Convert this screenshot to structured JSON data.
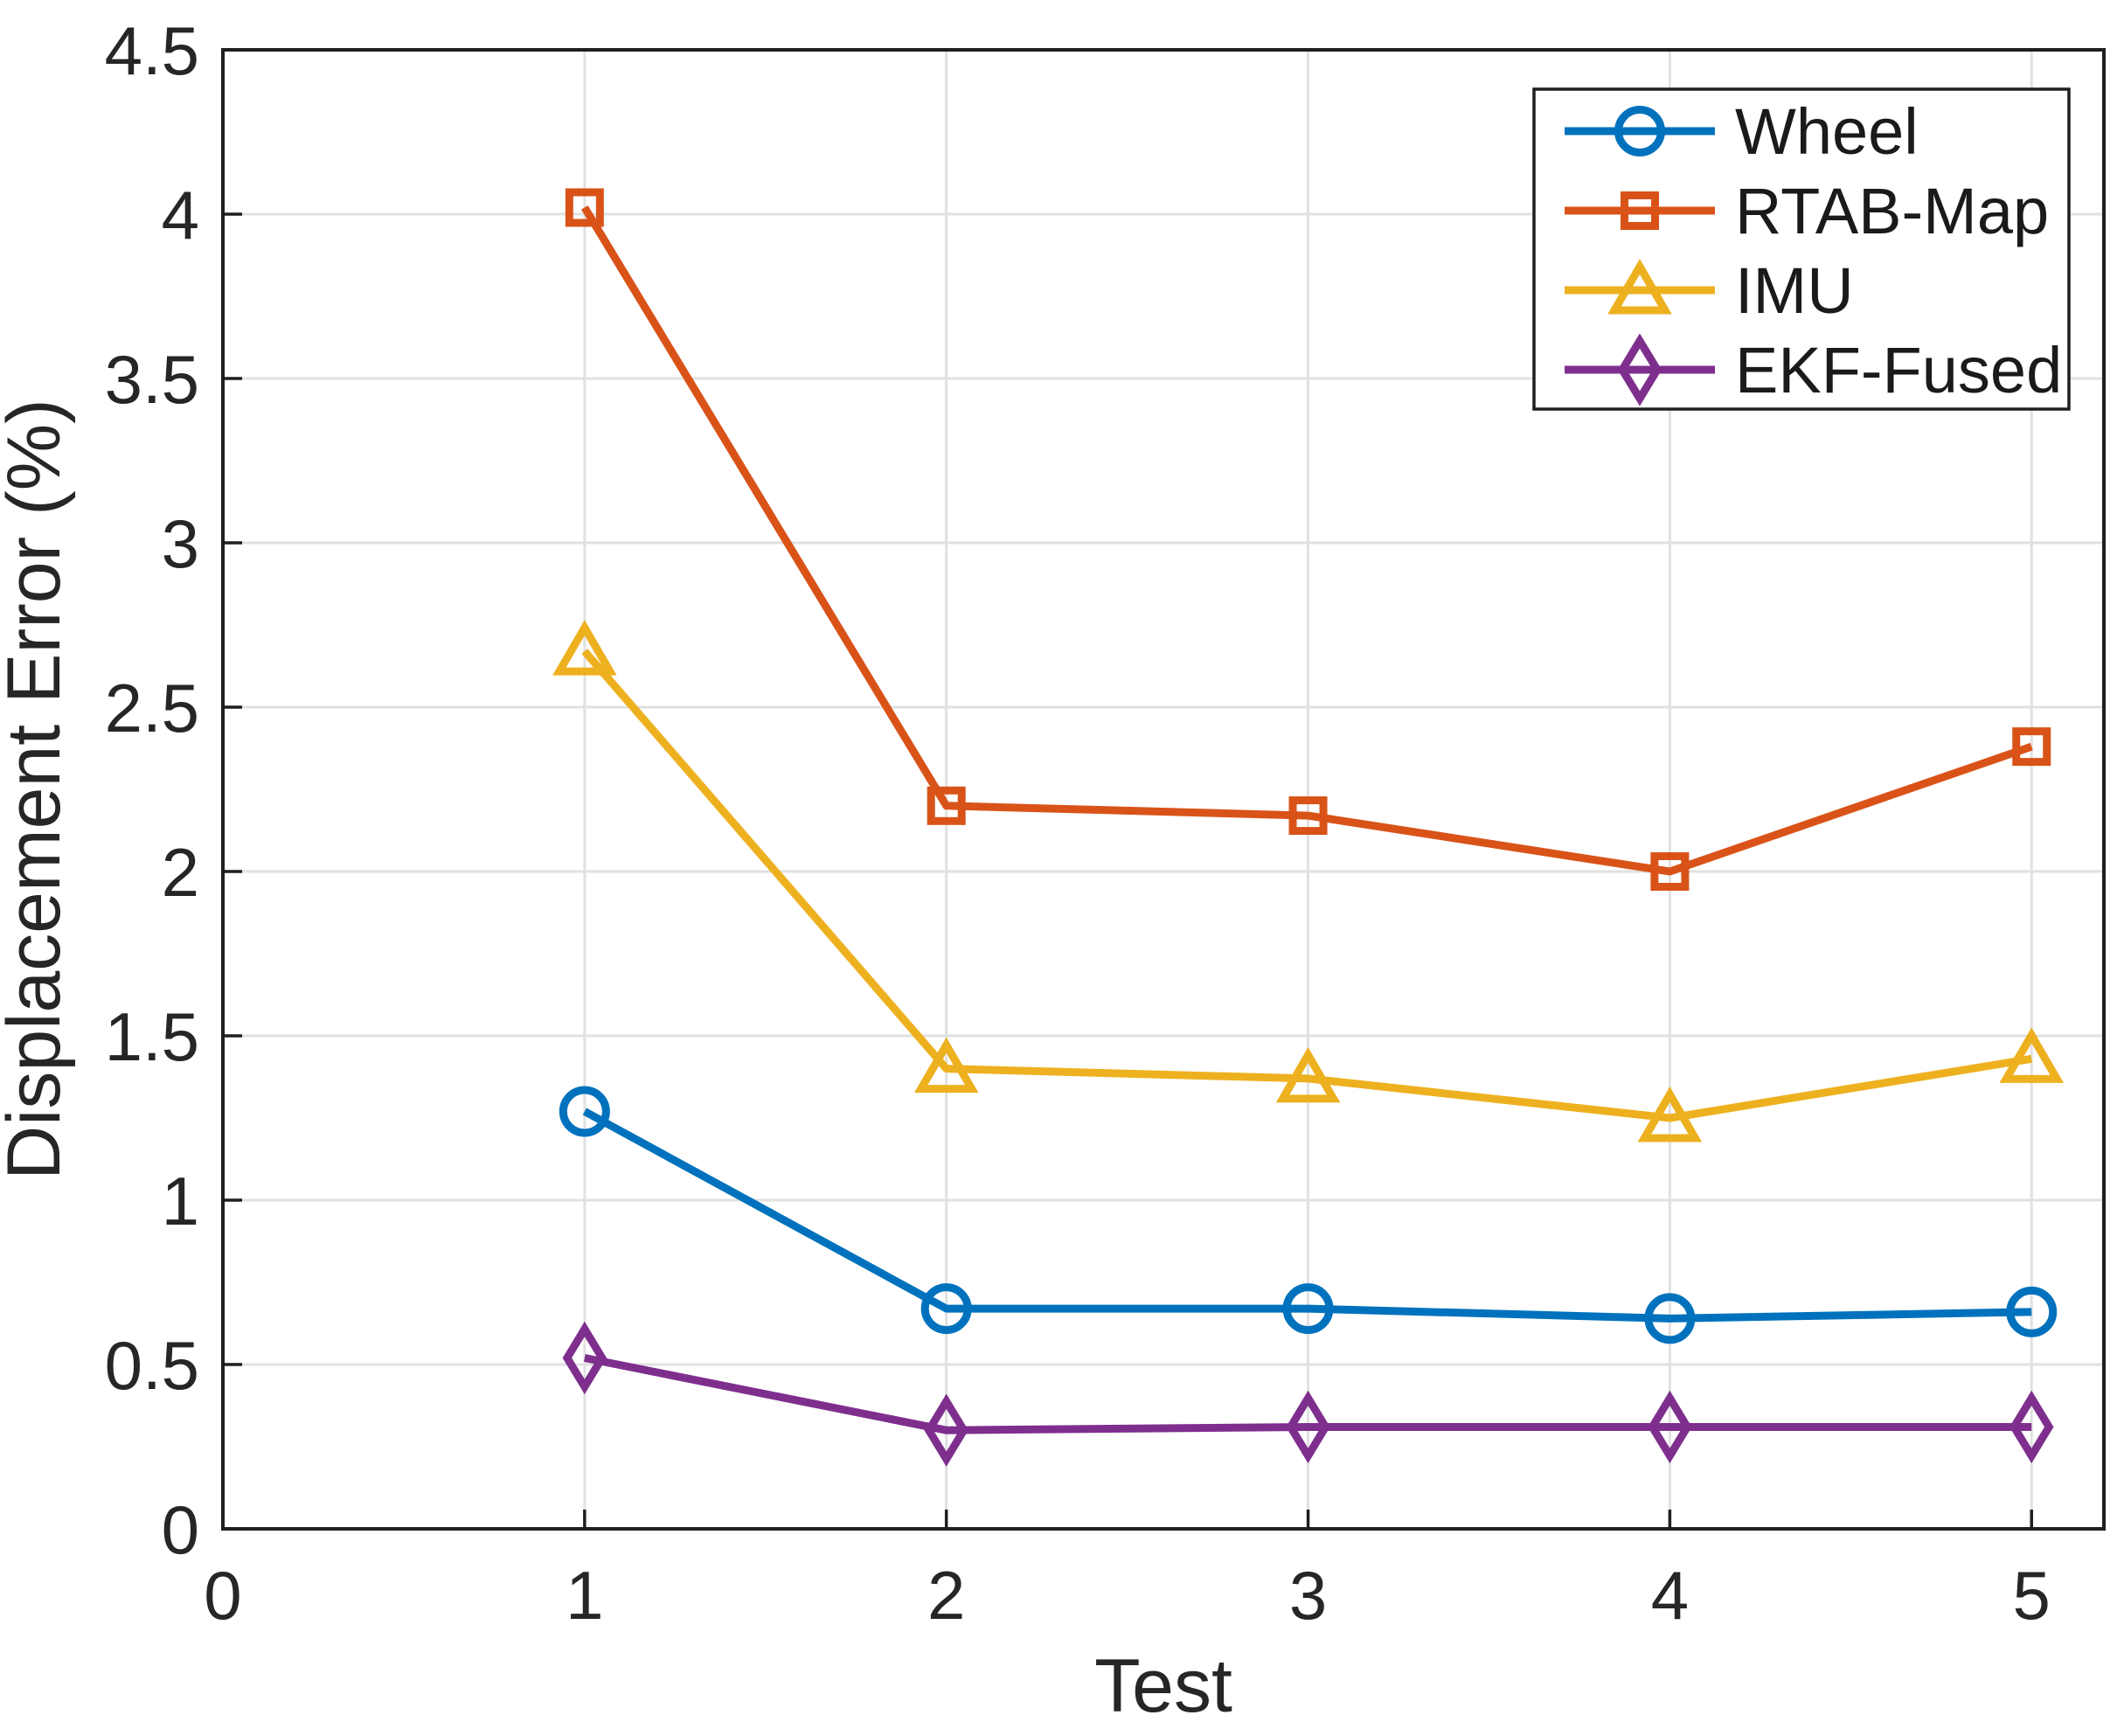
{
  "chart_data": {
    "type": "line",
    "title": "",
    "xlabel": "Test",
    "ylabel": "Displacement Error (%)",
    "x": [
      1,
      2,
      3,
      4,
      5
    ],
    "xlim": [
      0,
      5.2
    ],
    "ylim": [
      0,
      4.5
    ],
    "xticks": [
      0,
      1,
      2,
      3,
      4,
      5
    ],
    "yticks": [
      0,
      0.5,
      1,
      1.5,
      2,
      2.5,
      3,
      3.5,
      4,
      4.5
    ],
    "grid": true,
    "legend_position": "top-right",
    "series": [
      {
        "name": "Wheel",
        "color": "#0072BD",
        "marker": "circle",
        "values": [
          1.27,
          0.67,
          0.67,
          0.64,
          0.66
        ]
      },
      {
        "name": "RTAB-Map",
        "color": "#D95319",
        "marker": "square",
        "values": [
          4.02,
          2.2,
          2.17,
          2.0,
          2.38
        ]
      },
      {
        "name": "IMU",
        "color": "#EDB120",
        "marker": "triangle",
        "values": [
          2.67,
          1.4,
          1.37,
          1.25,
          1.43
        ]
      },
      {
        "name": "EKF-Fused",
        "color": "#7E2F8E",
        "marker": "diamond",
        "values": [
          0.52,
          0.3,
          0.31,
          0.31,
          0.31
        ]
      }
    ],
    "colors": {
      "background": "#ffffff",
      "grid": "#e1e1e1",
      "axis": "#1f1f1f",
      "text": "#262626"
    }
  }
}
